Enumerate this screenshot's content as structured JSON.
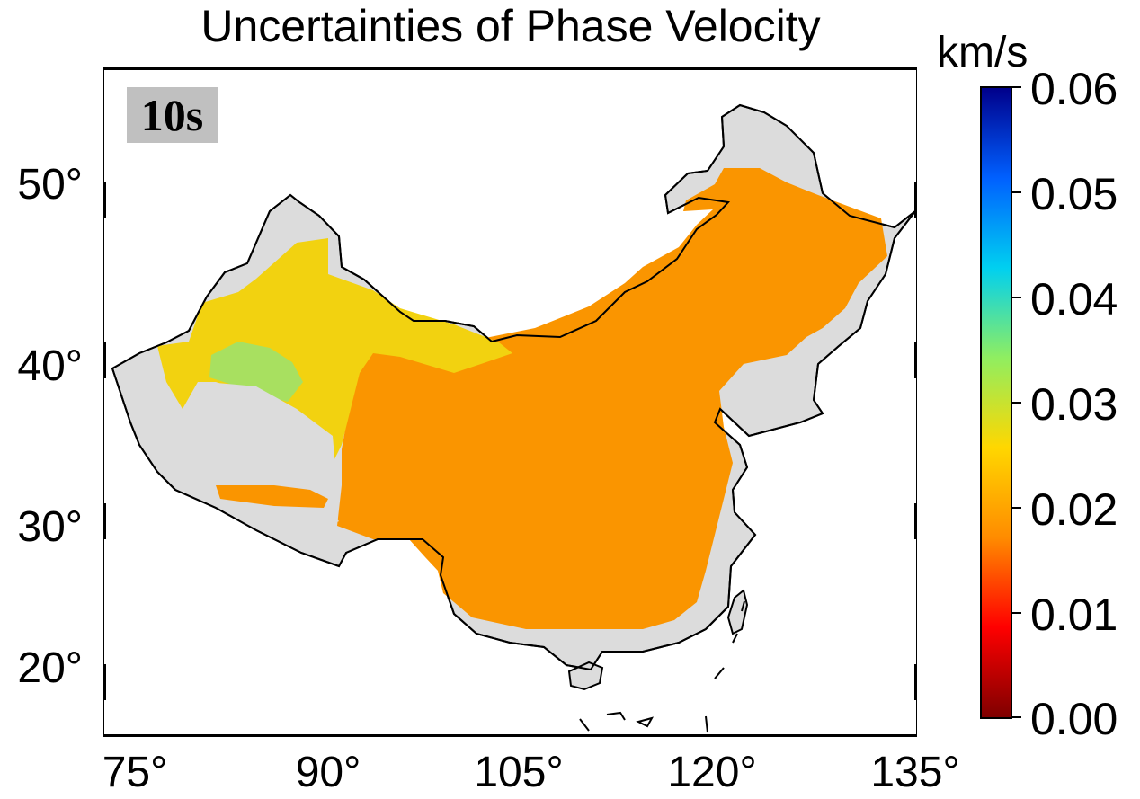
{
  "title": "Uncertainties of Phase Velocity",
  "period_label": "10s",
  "colorbar": {
    "unit": "km/s",
    "ticks": [
      "0.06",
      "0.05",
      "0.04",
      "0.03",
      "0.02",
      "0.01",
      "0.00"
    ],
    "range": [
      0.0,
      0.06
    ],
    "colormap": [
      "#7f0000",
      "#ff0000",
      "#ff8c00",
      "#ffd700",
      "#90ee60",
      "#00d0f0",
      "#0060ff",
      "#00008b"
    ]
  },
  "map": {
    "lat_labels": [
      "50°",
      "40°",
      "30°",
      "20°"
    ],
    "lon_labels": [
      "75°",
      "90°",
      "105°",
      "120°",
      "135°"
    ],
    "lat_range": [
      16,
      56
    ],
    "lon_range": [
      74,
      135
    ],
    "colors": {
      "land_no_data": "#dcdcdc",
      "dominant_uncertainty": "#fa9500",
      "western_uncertainty": "#f5d000",
      "tarim_uncertainty": "#a8e060"
    }
  }
}
